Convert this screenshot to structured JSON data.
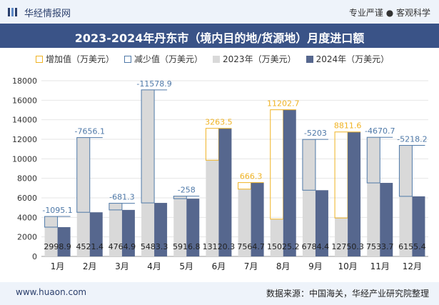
{
  "header": {
    "brand": "华经情报网",
    "tagline": "专业严谨 ● 客观科学"
  },
  "chart_title": "2023-2024年丹东市（境内目的地/货源地）月度进口额",
  "legend": {
    "increase": "增加值（万美元）",
    "decrease": "减少值（万美元）",
    "y2023": "2023年（万美元）",
    "y2024": "2024年（万美元）"
  },
  "footer": {
    "url": "www.huaon.com",
    "source": "数据来源：中国海关，华经产业研究院整理"
  },
  "colors": {
    "bar2023": "#d9d9d9",
    "bar2024": "#56678e",
    "increase": "#f0b323",
    "decrease": "#4f79a8",
    "decrease_label": "#4f79a8",
    "increase_label": "#f0b323"
  },
  "chart_data": {
    "type": "bar",
    "categories": [
      "1月",
      "2月",
      "3月",
      "4月",
      "5月",
      "6月",
      "7月",
      "8月",
      "9月",
      "10月",
      "11月",
      "12月"
    ],
    "series": [
      {
        "name": "2023年（万美元）",
        "values": [
          4094.0,
          12177.5,
          5446.2,
          17062.2,
          6174.8,
          9856.8,
          6898.4,
          3822.5,
          11987.4,
          3938.7,
          12204.4,
          11373.6
        ]
      },
      {
        "name": "2024年（万美元）",
        "values": [
          2998.9,
          4521.4,
          4764.9,
          5483.3,
          5916.8,
          13120.3,
          7564.7,
          15025.2,
          6784.4,
          12750.3,
          7533.7,
          6155.4
        ]
      }
    ],
    "change": [
      {
        "label": "-1095.1",
        "value": -1095.1
      },
      {
        "label": "-7656.1",
        "value": -7656.1
      },
      {
        "label": "-681.3",
        "value": -681.3
      },
      {
        "label": "-11578.9",
        "value": -11578.9
      },
      {
        "label": "-258",
        "value": -258
      },
      {
        "label": "3263.5",
        "value": 3263.5
      },
      {
        "label": "666.3",
        "value": 666.3
      },
      {
        "label": "11202.7",
        "value": 11202.7
      },
      {
        "label": "-5203",
        "value": -5203
      },
      {
        "label": "8811.6",
        "value": 8811.6
      },
      {
        "label": "-4670.7",
        "value": -4670.7
      },
      {
        "label": "-5218.2",
        "value": -5218.2
      }
    ],
    "value_labels_2024": [
      "2998.9",
      "4521.4",
      "4764.9",
      "5483.3",
      "5916.8",
      "13120.3",
      "7564.7",
      "15025.2",
      "6784.4",
      "12750.3",
      "7533.7",
      "6155.4"
    ],
    "yticks": [
      "0",
      "2000",
      "4000",
      "6000",
      "8000",
      "10000",
      "12000",
      "14000",
      "16000",
      "18000"
    ],
    "ylim": [
      0,
      18000
    ],
    "grid": true,
    "legend_position": "top"
  }
}
